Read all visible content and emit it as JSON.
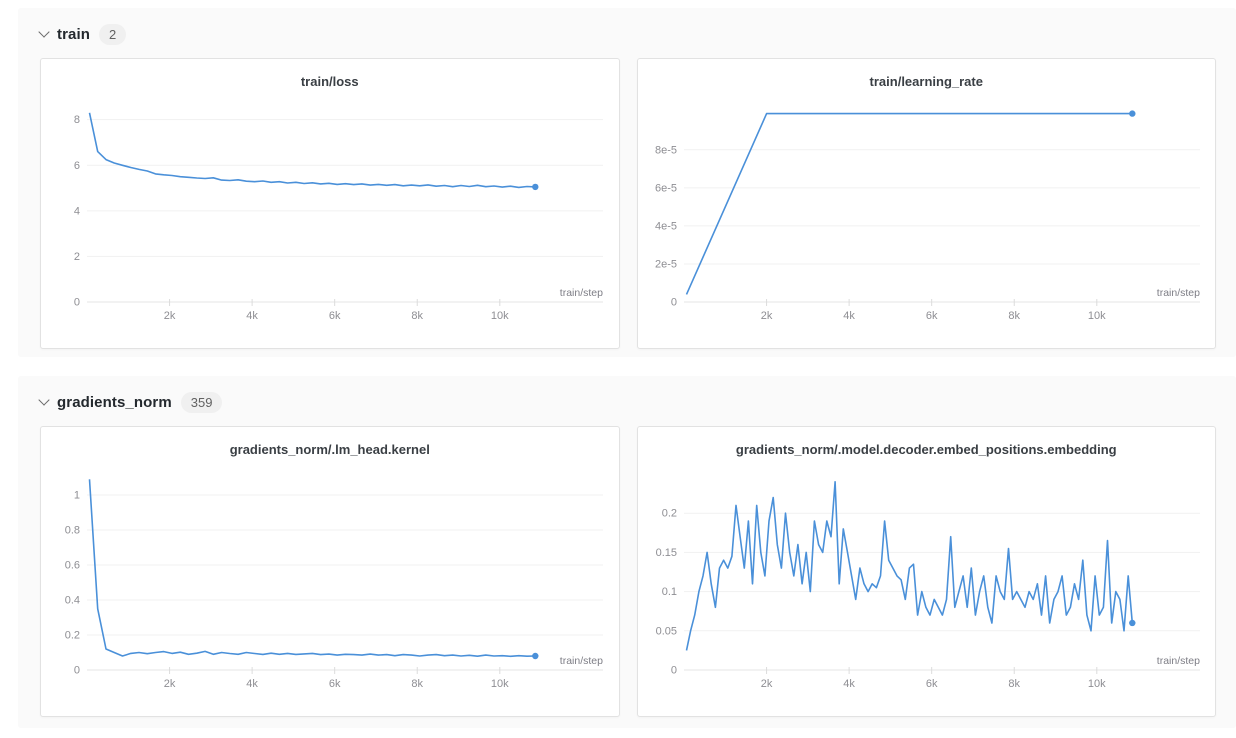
{
  "colors": {
    "line": "#4a90d9",
    "grid": "#f1f1f1",
    "axis": "#e4e4e4",
    "tick": "#dcdcdc",
    "tick_text": "#8e8e93",
    "axis_label_text": "#7d7d85",
    "panel_bg": "#fafafa",
    "card_bg": "#ffffff",
    "card_border": "#e2e2e2"
  },
  "sections": [
    {
      "title": "train",
      "count": "2",
      "chart_refs": [
        0,
        1
      ]
    },
    {
      "title": "gradients_norm",
      "count": "359",
      "chart_refs": [
        2,
        3
      ]
    }
  ],
  "chart_data": [
    {
      "type": "line",
      "title": "train/loss",
      "xlabel": "train/step",
      "xlim": [
        0,
        12500
      ],
      "ylim": [
        0,
        8.6
      ],
      "yticks": [
        0,
        2,
        4,
        6,
        8
      ],
      "ytick_labels": [
        "0",
        "2",
        "4",
        "6",
        "8"
      ],
      "xticks": [
        2000,
        4000,
        6000,
        8000,
        10000
      ],
      "xtick_labels": [
        "2k",
        "4k",
        "6k",
        "8k",
        "10k"
      ],
      "grid": "horizontal",
      "legend": "none",
      "end_marker": true,
      "x_start": 60,
      "x_step": 200,
      "values": [
        8.3,
        6.6,
        6.25,
        6.1,
        6.0,
        5.9,
        5.82,
        5.75,
        5.62,
        5.58,
        5.55,
        5.5,
        5.47,
        5.44,
        5.42,
        5.45,
        5.35,
        5.33,
        5.36,
        5.3,
        5.28,
        5.31,
        5.25,
        5.28,
        5.22,
        5.25,
        5.2,
        5.23,
        5.18,
        5.21,
        5.16,
        5.19,
        5.15,
        5.18,
        5.13,
        5.16,
        5.12,
        5.15,
        5.1,
        5.13,
        5.1,
        5.14,
        5.08,
        5.11,
        5.06,
        5.11,
        5.07,
        5.12,
        5.06,
        5.09,
        5.04,
        5.08,
        5.03,
        5.07,
        5.05
      ]
    },
    {
      "type": "line",
      "title": "train/learning_rate",
      "xlabel": "train/step",
      "xlim": [
        0,
        12500
      ],
      "ylim": [
        0,
        0.000103
      ],
      "yticks": [
        0,
        2e-05,
        4e-05,
        6e-05,
        8e-05
      ],
      "ytick_labels": [
        "0",
        "2e-5",
        "4e-5",
        "6e-5",
        "8e-5"
      ],
      "xticks": [
        2000,
        4000,
        6000,
        8000,
        10000
      ],
      "xtick_labels": [
        "2k",
        "4k",
        "6k",
        "8k",
        "10k"
      ],
      "grid": "horizontal",
      "legend": "none",
      "end_marker": true,
      "points": [
        [
          60,
          4e-06
        ],
        [
          2000,
          9.9e-05
        ],
        [
          10860,
          9.9e-05
        ]
      ]
    },
    {
      "type": "line",
      "title": "gradients_norm/.lm_head.kernel",
      "xlabel": "train/step",
      "xlim": [
        0,
        12500
      ],
      "ylim": [
        0,
        1.12
      ],
      "yticks": [
        0,
        0.2,
        0.4,
        0.6,
        0.8,
        1
      ],
      "ytick_labels": [
        "0",
        "0.2",
        "0.4",
        "0.6",
        "0.8",
        "1"
      ],
      "xticks": [
        2000,
        4000,
        6000,
        8000,
        10000
      ],
      "xtick_labels": [
        "2k",
        "4k",
        "6k",
        "8k",
        "10k"
      ],
      "grid": "horizontal",
      "legend": "none",
      "end_marker": true,
      "x_start": 60,
      "x_step": 200,
      "values": [
        1.09,
        0.35,
        0.12,
        0.1,
        0.08,
        0.095,
        0.1,
        0.093,
        0.1,
        0.105,
        0.095,
        0.102,
        0.09,
        0.096,
        0.106,
        0.09,
        0.1,
        0.094,
        0.09,
        0.1,
        0.094,
        0.089,
        0.096,
        0.09,
        0.095,
        0.089,
        0.092,
        0.095,
        0.088,
        0.091,
        0.085,
        0.09,
        0.088,
        0.085,
        0.091,
        0.085,
        0.088,
        0.082,
        0.088,
        0.085,
        0.08,
        0.085,
        0.088,
        0.082,
        0.085,
        0.08,
        0.084,
        0.079,
        0.085,
        0.08,
        0.082,
        0.078,
        0.082,
        0.079,
        0.08
      ]
    },
    {
      "type": "line",
      "title": "gradients_norm/.model.decoder.embed_positions.embedding",
      "xlabel": "train/step",
      "xlim": [
        0,
        12500
      ],
      "ylim": [
        0,
        0.25
      ],
      "yticks": [
        0,
        0.05,
        0.1,
        0.15,
        0.2
      ],
      "ytick_labels": [
        "0",
        "0.05",
        "0.1",
        "0.15",
        "0.2"
      ],
      "xticks": [
        2000,
        4000,
        6000,
        8000,
        10000
      ],
      "xtick_labels": [
        "2k",
        "4k",
        "6k",
        "8k",
        "10k"
      ],
      "grid": "horizontal",
      "legend": "none",
      "end_marker": true,
      "x_start": 60,
      "x_step": 100,
      "values": [
        0.025,
        0.05,
        0.07,
        0.1,
        0.12,
        0.15,
        0.11,
        0.08,
        0.13,
        0.14,
        0.13,
        0.145,
        0.21,
        0.17,
        0.13,
        0.19,
        0.11,
        0.21,
        0.15,
        0.12,
        0.19,
        0.22,
        0.16,
        0.13,
        0.2,
        0.15,
        0.12,
        0.16,
        0.11,
        0.15,
        0.1,
        0.19,
        0.16,
        0.15,
        0.19,
        0.17,
        0.24,
        0.11,
        0.18,
        0.15,
        0.12,
        0.09,
        0.13,
        0.11,
        0.1,
        0.11,
        0.105,
        0.12,
        0.19,
        0.14,
        0.13,
        0.12,
        0.115,
        0.09,
        0.13,
        0.135,
        0.07,
        0.1,
        0.08,
        0.07,
        0.09,
        0.08,
        0.07,
        0.09,
        0.17,
        0.08,
        0.1,
        0.12,
        0.08,
        0.13,
        0.07,
        0.1,
        0.12,
        0.08,
        0.06,
        0.12,
        0.1,
        0.09,
        0.155,
        0.09,
        0.1,
        0.09,
        0.08,
        0.1,
        0.09,
        0.11,
        0.07,
        0.12,
        0.06,
        0.09,
        0.1,
        0.12,
        0.07,
        0.08,
        0.11,
        0.09,
        0.14,
        0.07,
        0.05,
        0.12,
        0.07,
        0.08,
        0.165,
        0.06,
        0.1,
        0.09,
        0.05,
        0.12,
        0.06
      ]
    }
  ]
}
